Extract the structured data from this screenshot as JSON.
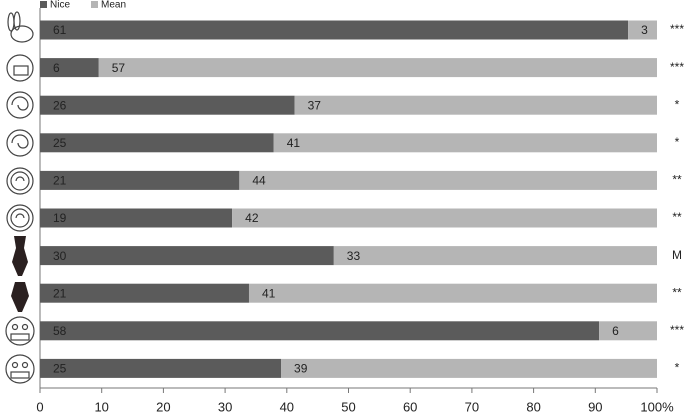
{
  "chart_data": {
    "type": "bar100",
    "categories": [
      null,
      null,
      null,
      null,
      null,
      null,
      null,
      null,
      null,
      null
    ],
    "series": [
      {
        "name": "Nice",
        "color": "#5b5b5b",
        "values": [
          61,
          6,
          26,
          25,
          21,
          19,
          30,
          21,
          58,
          25
        ]
      },
      {
        "name": "Mean",
        "color": "#b5b5b5",
        "values": [
          3,
          57,
          37,
          41,
          44,
          42,
          33,
          41,
          6,
          39
        ]
      }
    ],
    "significance": [
      "***",
      "***",
      "*",
      "*",
      "**",
      "**",
      "M",
      "**",
      "***",
      "*"
    ],
    "xlim": [
      0,
      100
    ],
    "xticks": [
      0,
      10,
      20,
      30,
      40,
      50,
      60,
      70,
      80,
      90,
      {
        "value": 100,
        "label": "100%"
      }
    ],
    "legend": "top-left"
  }
}
